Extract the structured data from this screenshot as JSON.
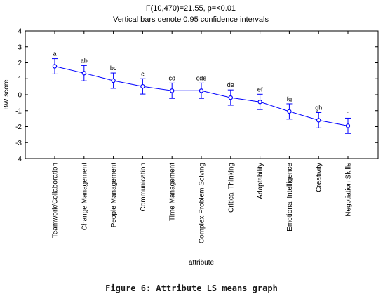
{
  "chart_data": {
    "type": "line",
    "title": "F(10,470)=21.55, p=<0.01",
    "subtitle": "Vertical bars denote 0.95 confidence intervals",
    "xlabel": "attribute",
    "ylabel": "BW score",
    "ylim": [
      -4,
      4
    ],
    "yticks": [
      "-4",
      "-3",
      "-2",
      "-1",
      "0",
      "1",
      "2",
      "3",
      "4"
    ],
    "grid": false,
    "error_bars": "0.95 confidence intervals",
    "categories": [
      "Teamwork/Collaboration",
      "Change Management",
      "People Management",
      "Communication",
      "Time Management",
      "Complex Problem Solving",
      "Critical Thinking",
      "Adaptability",
      "Emotional Intelligence",
      "Creativity",
      "Negotiation Skills"
    ],
    "values": [
      1.78,
      1.35,
      0.88,
      0.52,
      0.25,
      0.25,
      -0.18,
      -0.45,
      -1.05,
      -1.6,
      -1.95
    ],
    "ci_lower": [
      1.3,
      0.87,
      0.4,
      0.04,
      -0.23,
      -0.23,
      -0.66,
      -0.93,
      -1.53,
      -2.08,
      -2.43
    ],
    "ci_upper": [
      2.26,
      1.83,
      1.36,
      1.0,
      0.73,
      0.73,
      0.3,
      0.03,
      -0.57,
      -1.12,
      -1.47
    ],
    "group_labels": [
      "a",
      "ab",
      "bc",
      "c",
      "cd",
      "cde",
      "de",
      "ef",
      "fg",
      "gh",
      "h"
    ],
    "line_color": "#0000ff"
  },
  "caption": "Figure 6: Attribute LS means graph"
}
